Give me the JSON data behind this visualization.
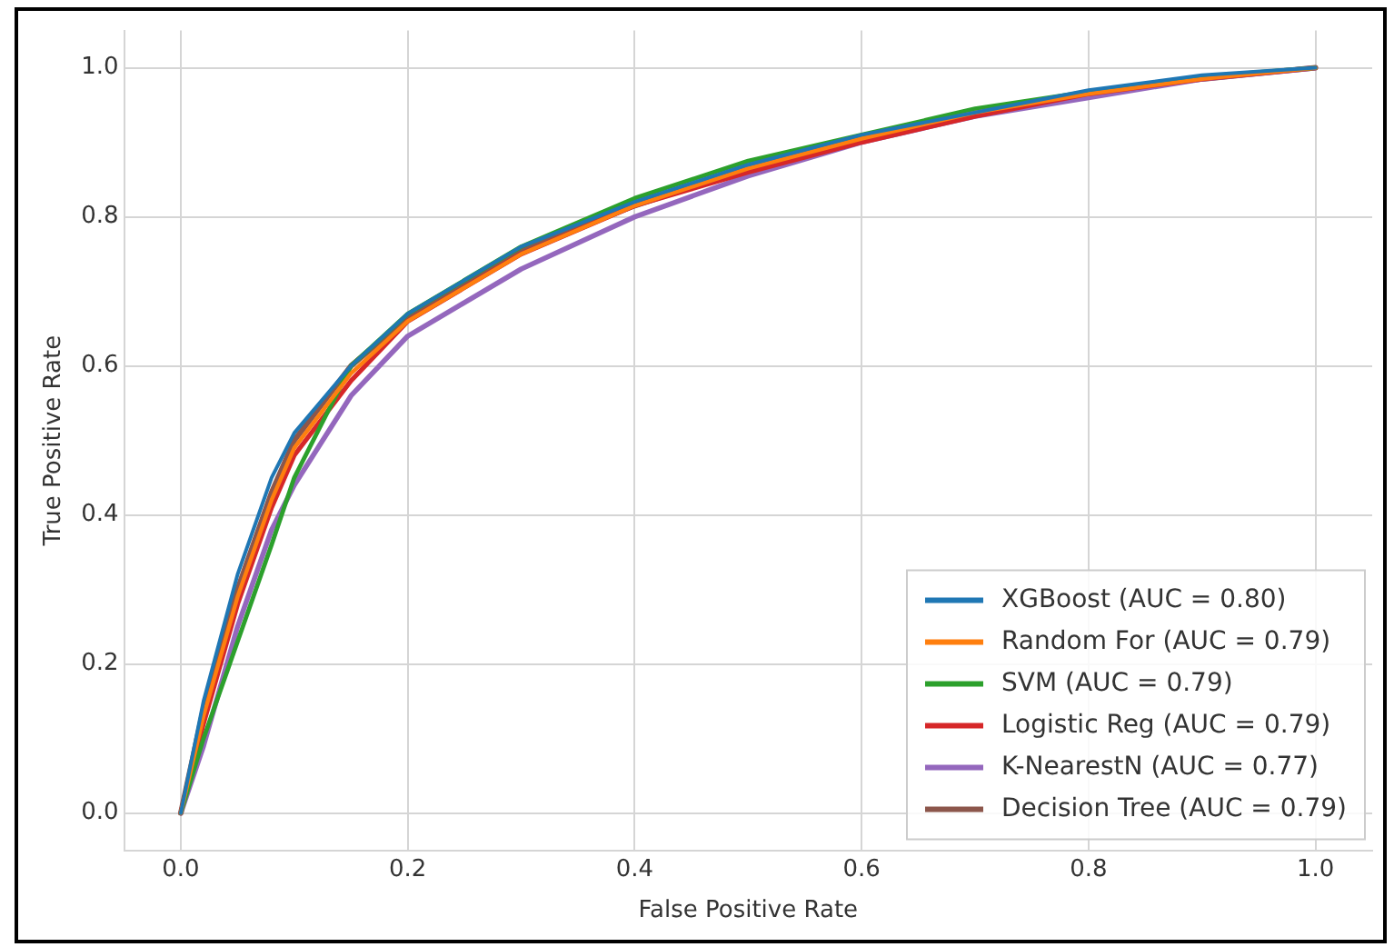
{
  "chart_data": {
    "type": "line",
    "xlabel": "False Positive Rate",
    "ylabel": "True Positive Rate",
    "x": [
      0,
      0.02,
      0.05,
      0.08,
      0.1,
      0.15,
      0.2,
      0.3,
      0.4,
      0.5,
      0.6,
      0.7,
      0.8,
      0.9,
      1
    ],
    "series": [
      {
        "name": "XGBoost (AUC = 0.80)",
        "color": "#1f77b4",
        "values": [
          0,
          0.15,
          0.32,
          0.45,
          0.51,
          0.6,
          0.67,
          0.76,
          0.82,
          0.87,
          0.91,
          0.94,
          0.97,
          0.99,
          1
        ]
      },
      {
        "name": "Random For (AUC = 0.79)",
        "color": "#ff7f0e",
        "values": [
          0,
          0.13,
          0.29,
          0.42,
          0.49,
          0.59,
          0.66,
          0.75,
          0.815,
          0.865,
          0.905,
          0.94,
          0.965,
          0.985,
          1
        ]
      },
      {
        "name": "SVM (AUC = 0.79)",
        "color": "#2ca02c",
        "values": [
          0,
          0.1,
          0.23,
          0.36,
          0.45,
          0.6,
          0.67,
          0.76,
          0.825,
          0.875,
          0.91,
          0.945,
          0.968,
          0.988,
          1
        ]
      },
      {
        "name": "Logistic Reg (AUC = 0.79)",
        "color": "#d62728",
        "values": [
          0,
          0.12,
          0.28,
          0.41,
          0.48,
          0.58,
          0.66,
          0.75,
          0.815,
          0.86,
          0.9,
          0.935,
          0.965,
          0.985,
          1
        ]
      },
      {
        "name": "K-NearestN (AUC = 0.77)",
        "color": "#9467bd",
        "values": [
          0,
          0.09,
          0.25,
          0.38,
          0.44,
          0.56,
          0.64,
          0.73,
          0.8,
          0.855,
          0.9,
          0.935,
          0.96,
          0.985,
          1
        ]
      },
      {
        "name": "Decision Tree (AUC = 0.79)",
        "color": "#8c564b",
        "values": [
          0,
          0.14,
          0.3,
          0.43,
          0.5,
          0.6,
          0.665,
          0.755,
          0.815,
          0.865,
          0.905,
          0.94,
          0.965,
          0.985,
          1
        ]
      }
    ],
    "xlim": [
      -0.05,
      1.05
    ],
    "ylim": [
      -0.05,
      1.05
    ],
    "xticks": [
      {
        "value": 0,
        "label": "0.0"
      },
      {
        "value": 0.2,
        "label": "0.2"
      },
      {
        "value": 0.4,
        "label": "0.4"
      },
      {
        "value": 0.6,
        "label": "0.6"
      },
      {
        "value": 0.8,
        "label": "0.8"
      },
      {
        "value": 1,
        "label": "1.0"
      }
    ],
    "yticks": [
      {
        "value": 0,
        "label": "0.0"
      },
      {
        "value": 0.2,
        "label": "0.2"
      },
      {
        "value": 0.4,
        "label": "0.4"
      },
      {
        "value": 0.6,
        "label": "0.6"
      },
      {
        "value": 0.8,
        "label": "0.8"
      },
      {
        "value": 1,
        "label": "1.0"
      }
    ],
    "grid": true,
    "legend": "bottom right",
    "marker": "none",
    "line_style": "solid"
  }
}
